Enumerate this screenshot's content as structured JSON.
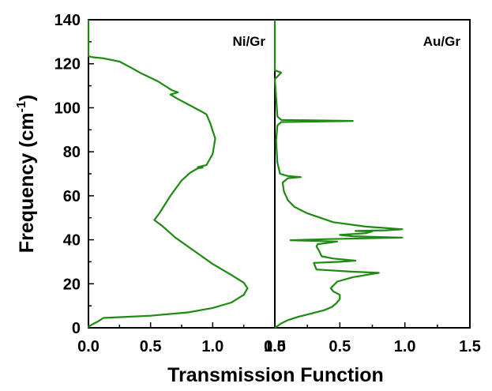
{
  "chart_data": {
    "type": "line",
    "xlabel": "Transmission Function",
    "ylabel": "Frequency (cm-1)",
    "ylabel_parts": {
      "main": "Frequency (cm",
      "sup": "-1",
      "close": ")"
    },
    "ylim": [
      0,
      140
    ],
    "yticks": [
      "0",
      "20",
      "40",
      "60",
      "80",
      "100",
      "120",
      "140"
    ],
    "line_color": "#1e8a12",
    "panels": [
      {
        "label": "Ni/Gr",
        "xlim": [
          0,
          1.5
        ],
        "xticks": [
          "0.0",
          "0.5",
          "1.0",
          "1.5"
        ],
        "points": [
          [
            0.0,
            0
          ],
          [
            0.0,
            0.5
          ],
          [
            0.03,
            1.5
          ],
          [
            0.08,
            3
          ],
          [
            0.12,
            4.5
          ],
          [
            0.5,
            5.5
          ],
          [
            0.8,
            7
          ],
          [
            1.0,
            9
          ],
          [
            1.15,
            11.5
          ],
          [
            1.25,
            15
          ],
          [
            1.28,
            18
          ],
          [
            1.25,
            20.5
          ],
          [
            1.15,
            24
          ],
          [
            1.0,
            29
          ],
          [
            0.85,
            35
          ],
          [
            0.7,
            41
          ],
          [
            0.6,
            46
          ],
          [
            0.53,
            49
          ],
          [
            0.57,
            52
          ],
          [
            0.66,
            60
          ],
          [
            0.75,
            67
          ],
          [
            0.82,
            70.5
          ],
          [
            0.88,
            72.5
          ],
          [
            0.92,
            72.8
          ],
          [
            0.88,
            73
          ],
          [
            0.95,
            74
          ],
          [
            1.0,
            79
          ],
          [
            1.02,
            86
          ],
          [
            0.98,
            93
          ],
          [
            0.95,
            97
          ],
          [
            0.92,
            98
          ],
          [
            0.82,
            101
          ],
          [
            0.72,
            104
          ],
          [
            0.66,
            106
          ],
          [
            0.72,
            107
          ],
          [
            0.67,
            108
          ],
          [
            0.56,
            112
          ],
          [
            0.43,
            115.5
          ],
          [
            0.35,
            118
          ],
          [
            0.25,
            121
          ],
          [
            0.12,
            122.5
          ],
          [
            0.03,
            123
          ],
          [
            0.0,
            123.5
          ],
          [
            0.0,
            140
          ]
        ]
      },
      {
        "label": "Au/Gr",
        "xlim": [
          0,
          1.5
        ],
        "xticks": [
          "0.0",
          "0.5",
          "1.0",
          "1.5"
        ],
        "points": [
          [
            0.0,
            0
          ],
          [
            0.05,
            2
          ],
          [
            0.1,
            3.5
          ],
          [
            0.18,
            5
          ],
          [
            0.28,
            6.5
          ],
          [
            0.38,
            8
          ],
          [
            0.44,
            9.5
          ],
          [
            0.47,
            11
          ],
          [
            0.5,
            13
          ],
          [
            0.5,
            15
          ],
          [
            0.45,
            16.5
          ],
          [
            0.43,
            18
          ],
          [
            0.48,
            21
          ],
          [
            0.6,
            23
          ],
          [
            0.8,
            25
          ],
          [
            0.6,
            25.5
          ],
          [
            0.32,
            26.5
          ],
          [
            0.3,
            29.5
          ],
          [
            0.5,
            30
          ],
          [
            0.62,
            30.5
          ],
          [
            0.45,
            31.5
          ],
          [
            0.36,
            32.5
          ],
          [
            0.34,
            35
          ],
          [
            0.32,
            37
          ],
          [
            0.33,
            38
          ],
          [
            0.48,
            39.2
          ],
          [
            0.12,
            39.8
          ],
          [
            0.4,
            40.3
          ],
          [
            0.98,
            41
          ],
          [
            0.6,
            41.6
          ],
          [
            0.5,
            42.2
          ],
          [
            0.7,
            43
          ],
          [
            0.75,
            43.8
          ],
          [
            0.62,
            44
          ],
          [
            0.85,
            44.3
          ],
          [
            0.98,
            44.8
          ],
          [
            0.7,
            46
          ],
          [
            0.45,
            48
          ],
          [
            0.35,
            50
          ],
          [
            0.25,
            52
          ],
          [
            0.15,
            55
          ],
          [
            0.1,
            58
          ],
          [
            0.07,
            62
          ],
          [
            0.06,
            66
          ],
          [
            0.1,
            68
          ],
          [
            0.2,
            68.5
          ],
          [
            0.1,
            69
          ],
          [
            0.04,
            70
          ],
          [
            0.02,
            75
          ],
          [
            0.01,
            85
          ],
          [
            0.02,
            92
          ],
          [
            0.05,
            93.5
          ],
          [
            0.6,
            94
          ],
          [
            0.05,
            94.5
          ],
          [
            0.02,
            96
          ],
          [
            0.01,
            105
          ],
          [
            0.0,
            113
          ],
          [
            0.05,
            116
          ],
          [
            0.0,
            117
          ],
          [
            0.0,
            140
          ]
        ]
      }
    ]
  }
}
